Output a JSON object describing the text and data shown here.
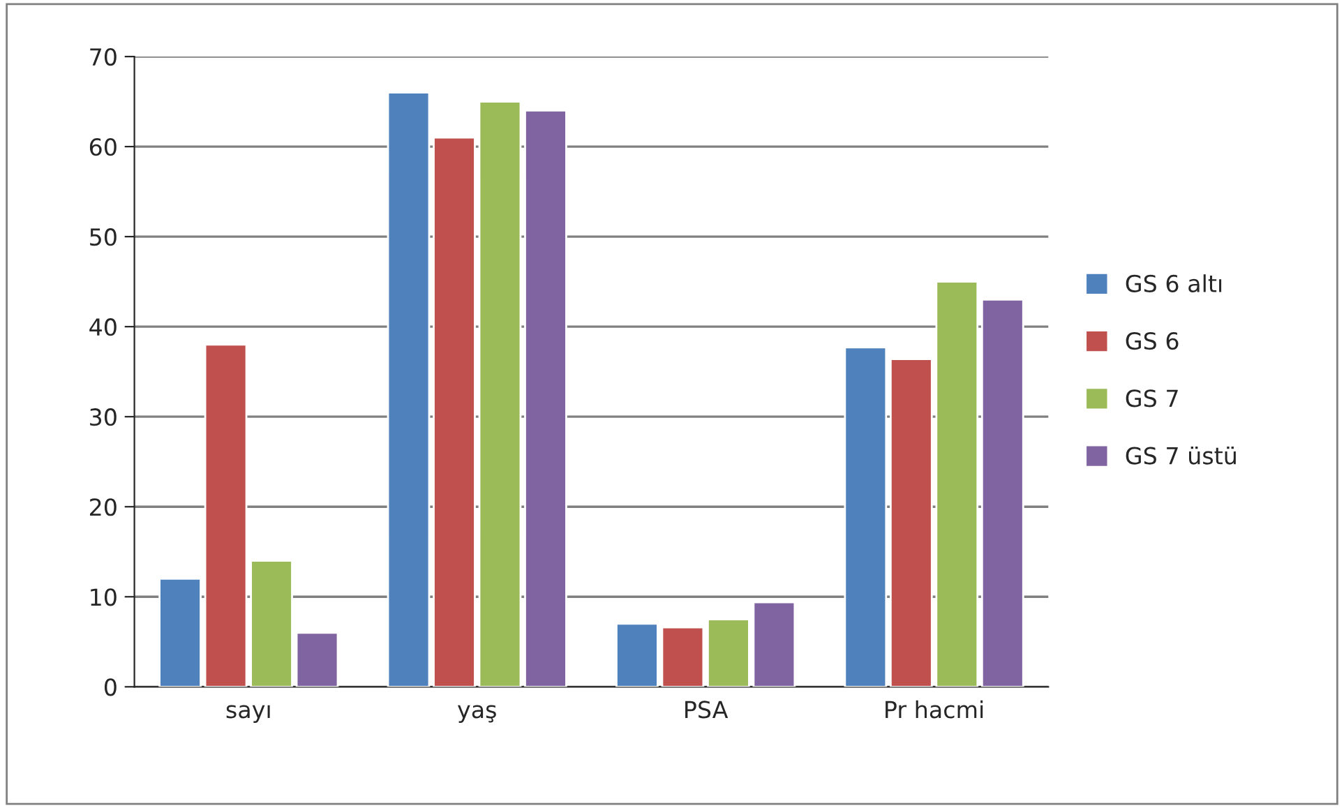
{
  "chart_data": {
    "type": "bar",
    "categories": [
      "sayı",
      "yaş",
      "PSA",
      "Pr hacmi"
    ],
    "series": [
      {
        "name": "GS 6 altı",
        "color": "#4f81bd",
        "values": [
          12,
          66,
          7,
          37.7
        ]
      },
      {
        "name": "GS 6",
        "color": "#c0504d",
        "values": [
          38,
          61,
          6.6,
          36.4
        ]
      },
      {
        "name": "GS 7",
        "color": "#9bbb59",
        "values": [
          14,
          65,
          7.5,
          45
        ]
      },
      {
        "name": "GS 7 üstü",
        "color": "#8064a2",
        "values": [
          6,
          64,
          9.4,
          43
        ]
      }
    ],
    "ylim": [
      0,
      70
    ],
    "yticks": [
      0,
      10,
      20,
      30,
      40,
      50,
      60,
      70
    ],
    "grid": "y",
    "legend": "right"
  }
}
